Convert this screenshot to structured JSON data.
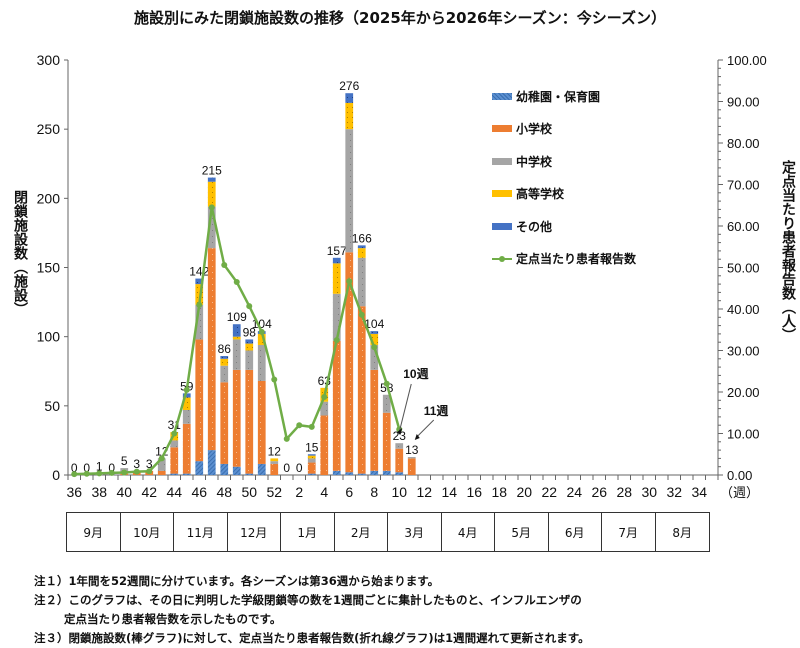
{
  "title": "施設別にみた閉鎖施設数の推移（2025年から2026年シーズン：今シーズン）",
  "axes": {
    "left_label": "閉鎖施設数（施設）",
    "right_label": "定点当たり患者報告数（人）",
    "left_ticks": [
      "0",
      "50",
      "100",
      "150",
      "200",
      "250",
      "300"
    ],
    "right_ticks": [
      "0.00",
      "10.00",
      "20.00",
      "30.00",
      "40.00",
      "50.00",
      "60.00",
      "70.00",
      "80.00",
      "90.00",
      "100.00"
    ],
    "x_ticks": [
      "36",
      "38",
      "40",
      "42",
      "44",
      "46",
      "48",
      "50",
      "52",
      "2",
      "4",
      "6",
      "8",
      "10",
      "12",
      "14",
      "16",
      "18",
      "20",
      "22",
      "24",
      "26",
      "28",
      "30",
      "32",
      "34"
    ],
    "x_unit": "（週）"
  },
  "legend": {
    "items": [
      {
        "label": "幼稚園・保育園",
        "color": "#4a7fc1"
      },
      {
        "label": "小学校",
        "color": "#ed7d31"
      },
      {
        "label": "中学校",
        "color": "#a5a5a5"
      },
      {
        "label": "高等学校",
        "color": "#ffc000"
      },
      {
        "label": "その他",
        "color": "#4472c4"
      },
      {
        "label": "定点当たり患者報告数",
        "color": "#70ad47"
      }
    ]
  },
  "annotations": {
    "week10": "10週",
    "week11": "11週"
  },
  "months": [
    "9月",
    "10月",
    "11月",
    "12月",
    "1月",
    "2月",
    "3月",
    "4月",
    "5月",
    "6月",
    "7月",
    "8月"
  ],
  "notes": {
    "note1": "注１）1年間を52週間に分けています。各シーズンは第36週から始まります。",
    "note2a": "注２）このグラフは、その日に判明した学級閉鎖等の数を1週間ごとに集計したものと、インフルエンザの",
    "note2b": "定点当たり患者報告数を示したものです。",
    "note3": "注３）閉鎖施設数(棒グラフ)に対して、定点当たり患者報告数(折れ線グラフ)は1週間遅れて更新されます。"
  },
  "chart_data": {
    "type": "bar",
    "subtype": "stacked bar + line (dual axis)",
    "title": "施設別にみた閉鎖施設数の推移（2025年から2026年シーズン：今シーズン）",
    "xlabel": "（週）",
    "ylabel": "閉鎖施設数（施設）",
    "ylabel_right": "定点当たり患者報告数（人）",
    "ylim": [
      0,
      300
    ],
    "ylim_right": [
      0,
      100
    ],
    "grid": false,
    "legend_position": "upper right (inside)",
    "categories": [
      "36",
      "37",
      "38",
      "39",
      "40",
      "41",
      "42",
      "43",
      "44",
      "45",
      "46",
      "47",
      "48",
      "49",
      "50",
      "51",
      "52",
      "1",
      "2",
      "3",
      "4",
      "5",
      "6",
      "7",
      "8",
      "9",
      "10",
      "11"
    ],
    "totals": [
      0,
      0,
      1,
      0,
      5,
      3,
      3,
      12,
      31,
      59,
      142,
      215,
      86,
      109,
      98,
      104,
      12,
      0,
      0,
      15,
      63,
      157,
      276,
      166,
      104,
      58,
      23,
      13
    ],
    "series": [
      {
        "name": "幼稚園・保育園",
        "axis": "left",
        "values": [
          0,
          0,
          0,
          0,
          0,
          0,
          0,
          0,
          1,
          1,
          10,
          18,
          8,
          6,
          1,
          8,
          0,
          0,
          0,
          1,
          0,
          3,
          2,
          1,
          3,
          3,
          2,
          0
        ]
      },
      {
        "name": "小学校",
        "axis": "left",
        "values": [
          0,
          0,
          0,
          0,
          1,
          2,
          3,
          3,
          19,
          36,
          88,
          146,
          59,
          70,
          75,
          60,
          8,
          0,
          0,
          8,
          43,
          94,
          159,
          121,
          73,
          42,
          17,
          12
        ]
      },
      {
        "name": "中学校",
        "axis": "left",
        "values": [
          0,
          0,
          1,
          0,
          4,
          1,
          0,
          9,
          5,
          10,
          25,
          30,
          12,
          22,
          14,
          26,
          2,
          0,
          0,
          3,
          10,
          34,
          89,
          35,
          18,
          13,
          4,
          1
        ]
      },
      {
        "name": "高等学校",
        "axis": "left",
        "values": [
          0,
          0,
          0,
          0,
          0,
          0,
          0,
          0,
          6,
          9,
          15,
          18,
          5,
          2,
          5,
          8,
          2,
          0,
          0,
          2,
          10,
          22,
          19,
          7,
          8,
          0,
          0,
          0
        ]
      },
      {
        "name": "その他",
        "axis": "left",
        "values": [
          0,
          0,
          0,
          0,
          0,
          0,
          0,
          0,
          0,
          3,
          4,
          3,
          2,
          9,
          3,
          2,
          0,
          0,
          0,
          1,
          0,
          4,
          7,
          2,
          2,
          0,
          0,
          0
        ]
      },
      {
        "name": "定点当たり患者報告数",
        "type": "line",
        "axis": "right",
        "values": [
          0.2,
          0.3,
          0.4,
          0.5,
          0.6,
          0.8,
          0.9,
          4.0,
          10.0,
          20.5,
          41.0,
          64.5,
          50.6,
          46.5,
          40.7,
          34.5,
          23.0,
          8.7,
          12.0,
          11.6,
          18.8,
          32.5,
          46.7,
          38.6,
          30.8,
          22.0,
          11.0,
          null
        ]
      }
    ],
    "annotations": [
      {
        "text": "10週",
        "target": "week 10 line point"
      },
      {
        "text": "11週",
        "target": "week 11 bar"
      }
    ]
  }
}
